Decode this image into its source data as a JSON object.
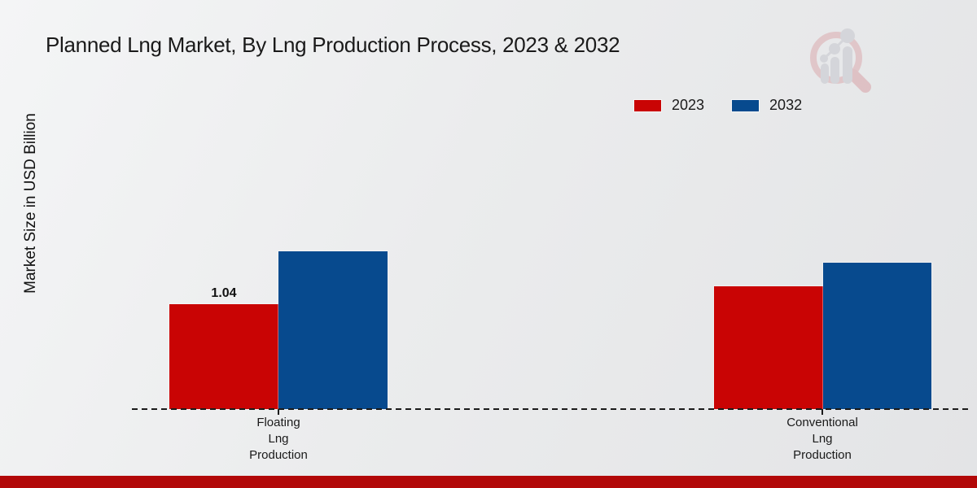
{
  "page": {
    "bottom_bar_color": "#b20808",
    "watermark_name": "market-research-future-logo"
  },
  "chart_data": {
    "type": "bar",
    "title": "Planned Lng Market, By Lng Production Process, 2023 & 2032",
    "xlabel": "",
    "ylabel": "Market Size in USD Billion",
    "categories": [
      "Floating\nLng\nProduction",
      "Conventional\nLng\nProduction"
    ],
    "series": [
      {
        "name": "2023",
        "color": "#c90404",
        "values": [
          1.04,
          1.22
        ]
      },
      {
        "name": "2032",
        "color": "#074a8e",
        "values": [
          1.56,
          1.45
        ]
      }
    ],
    "value_labels": [
      [
        "1.04",
        ""
      ],
      [
        "",
        ""
      ]
    ],
    "ylim": [
      0,
      3.27
    ],
    "grid": false,
    "legend_position": "top-right",
    "x_axis_style": "dashed"
  }
}
